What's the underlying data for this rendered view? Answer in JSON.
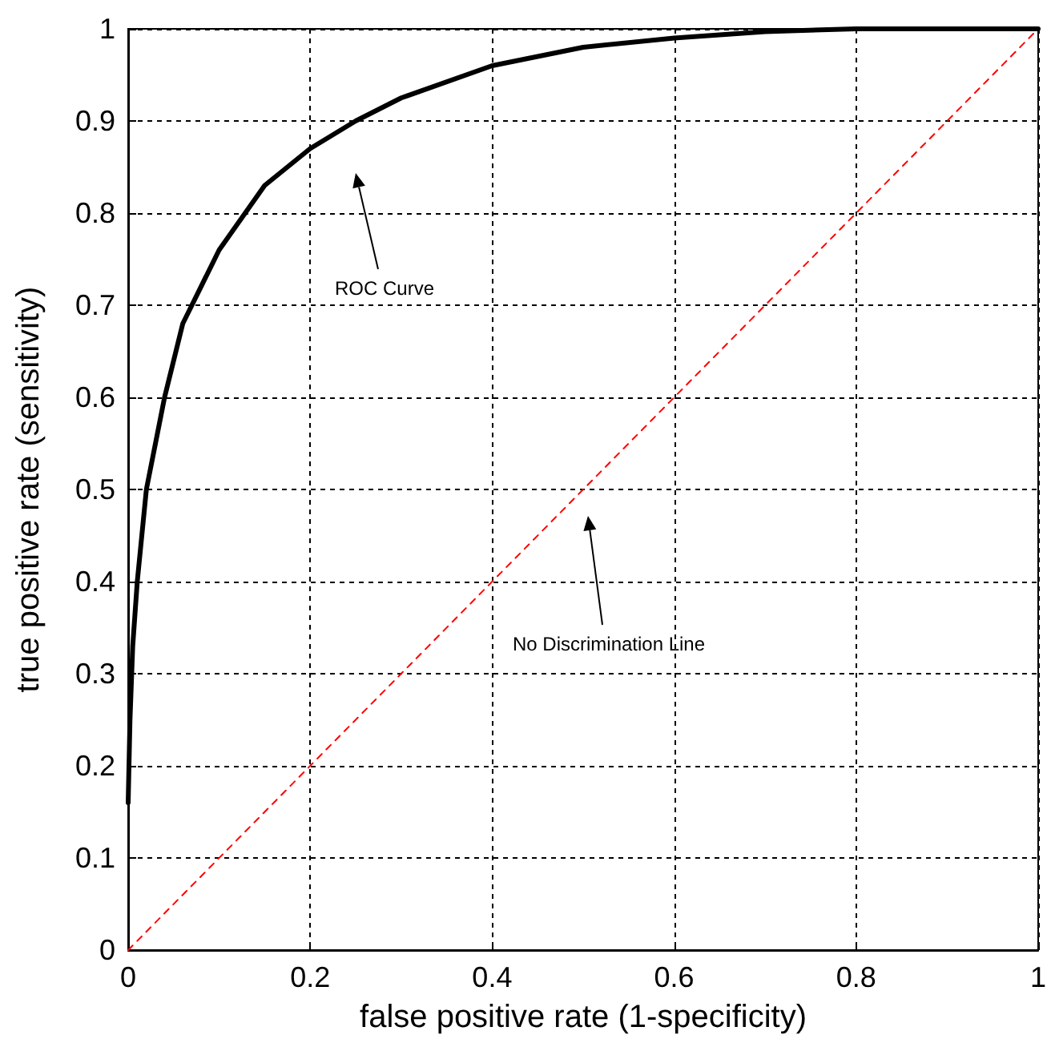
{
  "chart_data": {
    "type": "line",
    "xlabel": "false positive rate (1-specificity)",
    "ylabel": "true positive rate (sensitivity)",
    "xlim": [
      0,
      1
    ],
    "ylim": [
      0,
      1
    ],
    "xticks": [
      0,
      0.2,
      0.4,
      0.6,
      0.8,
      1
    ],
    "yticks": [
      0,
      0.1,
      0.2,
      0.3,
      0.4,
      0.5,
      0.6,
      0.7,
      0.8,
      0.9,
      1
    ],
    "grid": true,
    "marker": "none",
    "series": [
      {
        "color": "#000000",
        "line_style": "solid",
        "x": [
          0,
          0.002,
          0.005,
          0.01,
          0.02,
          0.04,
          0.06,
          0.1,
          0.15,
          0.2,
          0.25,
          0.3,
          0.4,
          0.5,
          0.6,
          0.7,
          0.8,
          1
        ],
        "values": [
          0.16,
          0.25,
          0.33,
          0.4,
          0.5,
          0.6,
          0.68,
          0.76,
          0.83,
          0.87,
          0.9,
          0.925,
          0.96,
          0.98,
          0.99,
          0.997,
          1,
          1
        ]
      },
      {
        "color": "#ff0000",
        "line_style": "dashed",
        "x": [
          0,
          1
        ],
        "values": [
          0,
          1
        ]
      }
    ],
    "annotations": [
      "ROC Curve",
      "No Discrimination Line"
    ]
  }
}
